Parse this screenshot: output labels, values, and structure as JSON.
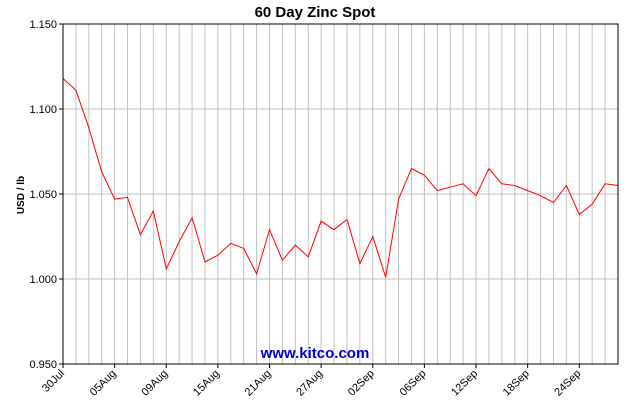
{
  "chart_data": {
    "type": "line",
    "title": "60 Day Zinc Spot",
    "ylabel": "USD / lb",
    "xlabel": "",
    "ylim": [
      0.95,
      1.15
    ],
    "y_ticks": [
      "0.950",
      "1.000",
      "1.050",
      "1.100",
      "1.150"
    ],
    "x_tick_labels": [
      "30Jul",
      "05Aug",
      "09Aug",
      "15Aug",
      "21Aug",
      "27Aug",
      "02Sep",
      "06Sep",
      "12Sep",
      "18Sep",
      "24Sep"
    ],
    "x_tick_indices": [
      0,
      4,
      8,
      12,
      16,
      20,
      24,
      28,
      32,
      36,
      40
    ],
    "grid": true,
    "series": [
      {
        "values": [
          1.118,
          1.111,
          1.089,
          1.063,
          1.047,
          1.048,
          1.026,
          1.04,
          1.006,
          1.022,
          1.036,
          1.01,
          1.014,
          1.021,
          1.018,
          1.003,
          1.029,
          1.011,
          1.02,
          1.013,
          1.034,
          1.029,
          1.035,
          1.009,
          1.025,
          1.001,
          1.047,
          1.065,
          1.061,
          1.052,
          1.054,
          1.056,
          1.049,
          1.065,
          1.056,
          1.055,
          1.052,
          1.049,
          1.045,
          1.055,
          1.038,
          1.044,
          1.056,
          1.055
        ],
        "color": "#ff0000"
      }
    ]
  },
  "watermark": "www.kitco.com",
  "colors": {
    "line": "#ff0000",
    "grid": "#c0c0c0",
    "watermark": "#0000cc",
    "frame": "#000000"
  }
}
